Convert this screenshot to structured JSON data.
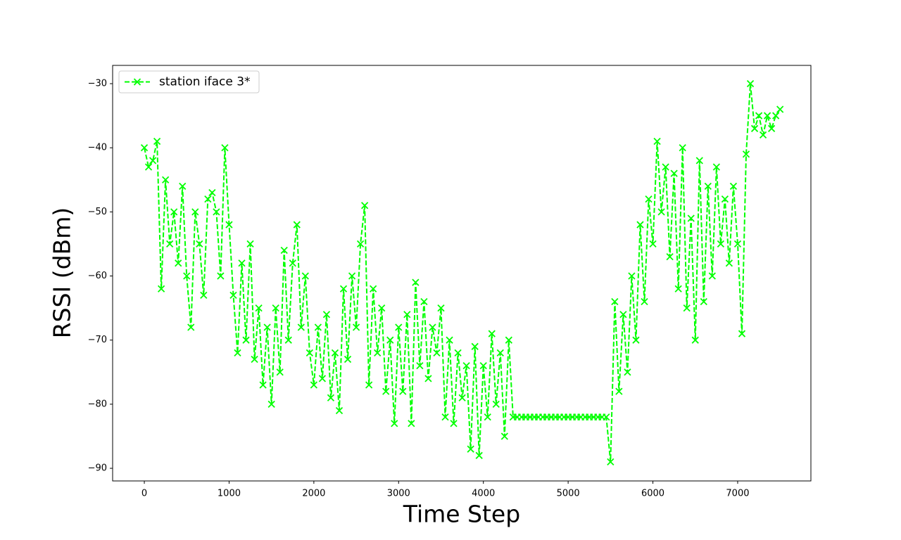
{
  "chart_data": {
    "type": "line",
    "xlabel": "Time Step",
    "ylabel": "RSSI (dBm)",
    "x": [
      0,
      50,
      100,
      150,
      200,
      250,
      300,
      350,
      400,
      450,
      500,
      550,
      600,
      650,
      700,
      750,
      800,
      850,
      900,
      950,
      1000,
      1050,
      1100,
      1150,
      1200,
      1250,
      1300,
      1350,
      1400,
      1450,
      1500,
      1550,
      1600,
      1650,
      1700,
      1750,
      1800,
      1850,
      1900,
      1950,
      2000,
      2050,
      2100,
      2150,
      2200,
      2250,
      2300,
      2350,
      2400,
      2450,
      2500,
      2550,
      2600,
      2650,
      2700,
      2750,
      2800,
      2850,
      2900,
      2950,
      3000,
      3050,
      3100,
      3150,
      3200,
      3250,
      3300,
      3350,
      3400,
      3450,
      3500,
      3550,
      3600,
      3650,
      3700,
      3750,
      3800,
      3850,
      3900,
      3950,
      4000,
      4050,
      4100,
      4150,
      4200,
      4250,
      4300,
      4350,
      4400,
      4450,
      4500,
      4550,
      4600,
      4650,
      4700,
      4750,
      4800,
      4850,
      4900,
      4950,
      5000,
      5050,
      5100,
      5150,
      5200,
      5250,
      5300,
      5350,
      5400,
      5450,
      5500,
      5550,
      5600,
      5650,
      5700,
      5750,
      5800,
      5850,
      5900,
      5950,
      6000,
      6050,
      6100,
      6150,
      6200,
      6250,
      6300,
      6350,
      6400,
      6450,
      6500,
      6550,
      6600,
      6650,
      6700,
      6750,
      6800,
      6850,
      6900,
      6950,
      7000,
      7050,
      7100,
      7150,
      7200,
      7250,
      7300,
      7350,
      7400,
      7450,
      7500
    ],
    "series": [
      {
        "name": "station iface 3*",
        "color": "#00ff00",
        "values": [
          -40,
          -43,
          -42,
          -39,
          -62,
          -45,
          -55,
          -50,
          -58,
          -46,
          -60,
          -68,
          -50,
          -55,
          -63,
          -48,
          -47,
          -50,
          -60,
          -40,
          -52,
          -63,
          -72,
          -58,
          -70,
          -55,
          -73,
          -65,
          -77,
          -68,
          -80,
          -65,
          -75,
          -56,
          -70,
          -58,
          -52,
          -68,
          -60,
          -72,
          -77,
          -68,
          -76,
          -66,
          -79,
          -72,
          -81,
          -62,
          -73,
          -60,
          -68,
          -55,
          -49,
          -77,
          -62,
          -72,
          -65,
          -78,
          -70,
          -83,
          -68,
          -78,
          -66,
          -83,
          -61,
          -74,
          -64,
          -76,
          -68,
          -72,
          -65,
          -82,
          -70,
          -83,
          -72,
          -79,
          -74,
          -87,
          -71,
          -88,
          -74,
          -82,
          -69,
          -80,
          -72,
          -85,
          -70,
          -82,
          -82,
          -82,
          -82,
          -82,
          -82,
          -82,
          -82,
          -82,
          -82,
          -82,
          -82,
          -82,
          -82,
          -82,
          -82,
          -82,
          -82,
          -82,
          -82,
          -82,
          -82,
          -82,
          -89,
          -64,
          -78,
          -66,
          -75,
          -60,
          -70,
          -52,
          -64,
          -48,
          -55,
          -39,
          -50,
          -43,
          -57,
          -44,
          -62,
          -40,
          -65,
          -51,
          -70,
          -42,
          -64,
          -46,
          -60,
          -43,
          -55,
          -48,
          -58,
          -46,
          -55,
          -69,
          -41,
          -30,
          -37,
          -35,
          -38,
          -35,
          -37,
          -35,
          -34
        ]
      }
    ],
    "xlim": [
      -374,
      7864
    ],
    "ylim": [
      -91.97,
      -27.15
    ],
    "xticks": [
      0,
      1000,
      2000,
      3000,
      4000,
      5000,
      6000,
      7000
    ],
    "yticks": [
      {
        "value": -90,
        "label": "−90"
      },
      {
        "value": -80,
        "label": "−80"
      },
      {
        "value": -70,
        "label": "−70"
      },
      {
        "value": -60,
        "label": "−60"
      },
      {
        "value": -50,
        "label": "−50"
      },
      {
        "value": -40,
        "label": "−40"
      },
      {
        "value": -30,
        "label": "−30"
      }
    ],
    "legend": "upper left"
  }
}
